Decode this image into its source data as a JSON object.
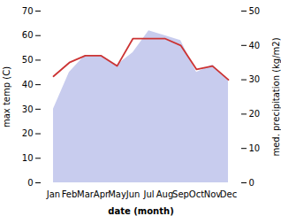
{
  "chart_data": {
    "type": "area",
    "xlabel": "date (month)",
    "ylabel": "max temp (C)",
    "y2label": "med. precipitation (kg/m2)",
    "categories": [
      "Jan",
      "Feb",
      "Mar",
      "Apr",
      "May",
      "Jun",
      "Jul",
      "Aug",
      "Sep",
      "Oct",
      "Nov",
      "Dec"
    ],
    "series": [
      {
        "type": "area",
        "color": "#c8ccee",
        "values": [
          30,
          45,
          52,
          52,
          48,
          53,
          62,
          60,
          58,
          45,
          48,
          42
        ]
      },
      {
        "type": "line",
        "axis": "y2",
        "color": "#cc3333",
        "values": [
          31,
          35,
          37,
          37,
          34,
          42,
          42,
          42,
          40,
          33,
          34,
          30
        ]
      }
    ],
    "ylim": [
      0,
      70
    ],
    "yticks": [
      0,
      10,
      20,
      30,
      40,
      50,
      60,
      70
    ],
    "y2lim": [
      0,
      50
    ],
    "y2ticks": [
      0,
      10,
      20,
      30,
      40,
      50
    ],
    "grid": false
  }
}
